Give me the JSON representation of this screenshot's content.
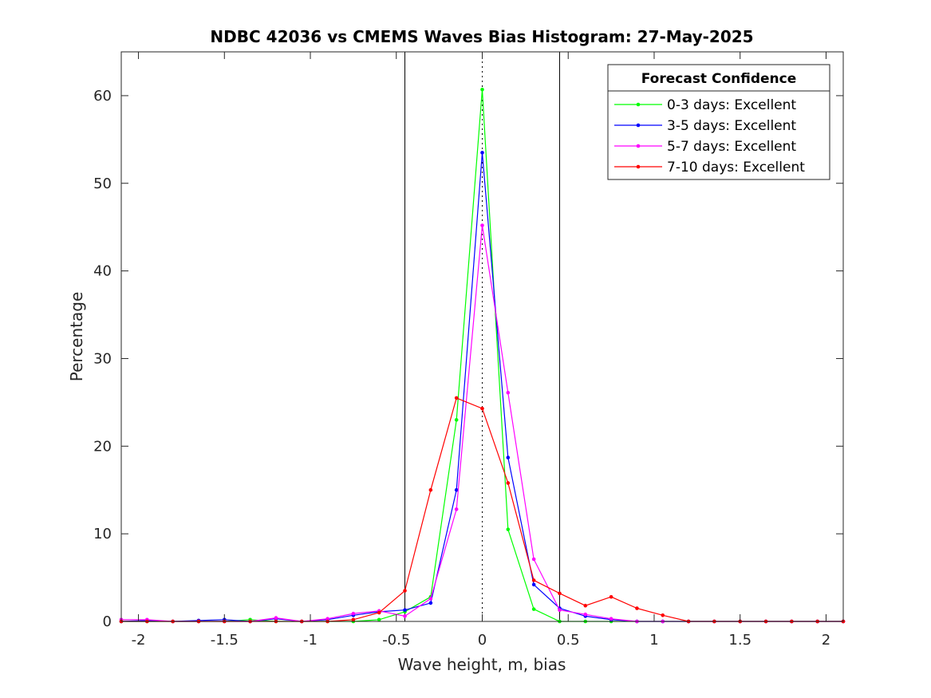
{
  "chart_data": {
    "type": "line",
    "title": "NDBC 42036 vs CMEMS Waves Bias Histogram: 27-May-2025",
    "xlabel": "Wave height, m, bias",
    "ylabel": "Percentage",
    "xlim": [
      -2.1,
      2.1
    ],
    "ylim": [
      0,
      65
    ],
    "xticks": [
      -2,
      -1.5,
      -1,
      -0.5,
      0,
      0.5,
      1,
      1.5,
      2
    ],
    "xtick_labels": [
      "-2",
      "-1.5",
      "-1",
      "-0.5",
      "0",
      "0.5",
      "1",
      "1.5",
      "2"
    ],
    "yticks": [
      0,
      10,
      20,
      30,
      40,
      50,
      60
    ],
    "ytick_labels": [
      "0",
      "10",
      "20",
      "30",
      "40",
      "50",
      "60"
    ],
    "vertical_lines": [
      {
        "x": -0.45,
        "style": "solid"
      },
      {
        "x": 0.45,
        "style": "solid"
      },
      {
        "x": 0,
        "style": "dotted"
      }
    ],
    "legend": {
      "title": "Forecast Confidence",
      "position": "top-right"
    },
    "x": [
      -2.1,
      -1.95,
      -1.8,
      -1.65,
      -1.5,
      -1.35,
      -1.2,
      -1.05,
      -0.9,
      -0.75,
      -0.6,
      -0.45,
      -0.3,
      -0.15,
      0,
      0.15,
      0.3,
      0.45,
      0.6,
      0.75,
      0.9,
      1.05,
      1.2,
      1.35,
      1.5,
      1.65,
      1.8,
      1.95,
      2.1
    ],
    "series": [
      {
        "name": "0-3 days: Excellent",
        "color": "#00ff00",
        "values": [
          0,
          0,
          0,
          0,
          0,
          0.2,
          0,
          0,
          0,
          0,
          0.2,
          1.1,
          2.8,
          23,
          60.7,
          10.5,
          1.4,
          0,
          0,
          0,
          0,
          0,
          0,
          0,
          0,
          0,
          0,
          0,
          0
        ]
      },
      {
        "name": "3-5 days: Excellent",
        "color": "#0000ff",
        "values": [
          0,
          0.1,
          0,
          0.1,
          0.2,
          0,
          0.3,
          0,
          0.2,
          0.7,
          1.1,
          1.3,
          2.1,
          15,
          53.5,
          18.7,
          4.2,
          1.5,
          0.6,
          0.2,
          0,
          0,
          0,
          0,
          0,
          0,
          0,
          0,
          0
        ]
      },
      {
        "name": "5-7 days: Excellent",
        "color": "#ff00ff",
        "values": [
          0.2,
          0.2,
          0,
          0,
          0,
          0,
          0.4,
          0,
          0.3,
          0.9,
          1.2,
          0.6,
          2.6,
          12.8,
          45.2,
          26.1,
          7.1,
          1.3,
          0.8,
          0.3,
          0,
          0,
          0,
          0,
          0,
          0,
          0,
          0,
          0
        ]
      },
      {
        "name": "7-10 days: Excellent",
        "color": "#ff0000",
        "values": [
          0,
          0,
          0,
          0,
          0,
          0,
          0,
          0,
          0,
          0.2,
          1,
          3.5,
          15,
          25.5,
          24.3,
          15.8,
          4.7,
          3.2,
          1.8,
          2.8,
          1.5,
          0.7,
          0,
          0,
          0,
          0,
          0,
          0,
          0
        ]
      }
    ]
  }
}
